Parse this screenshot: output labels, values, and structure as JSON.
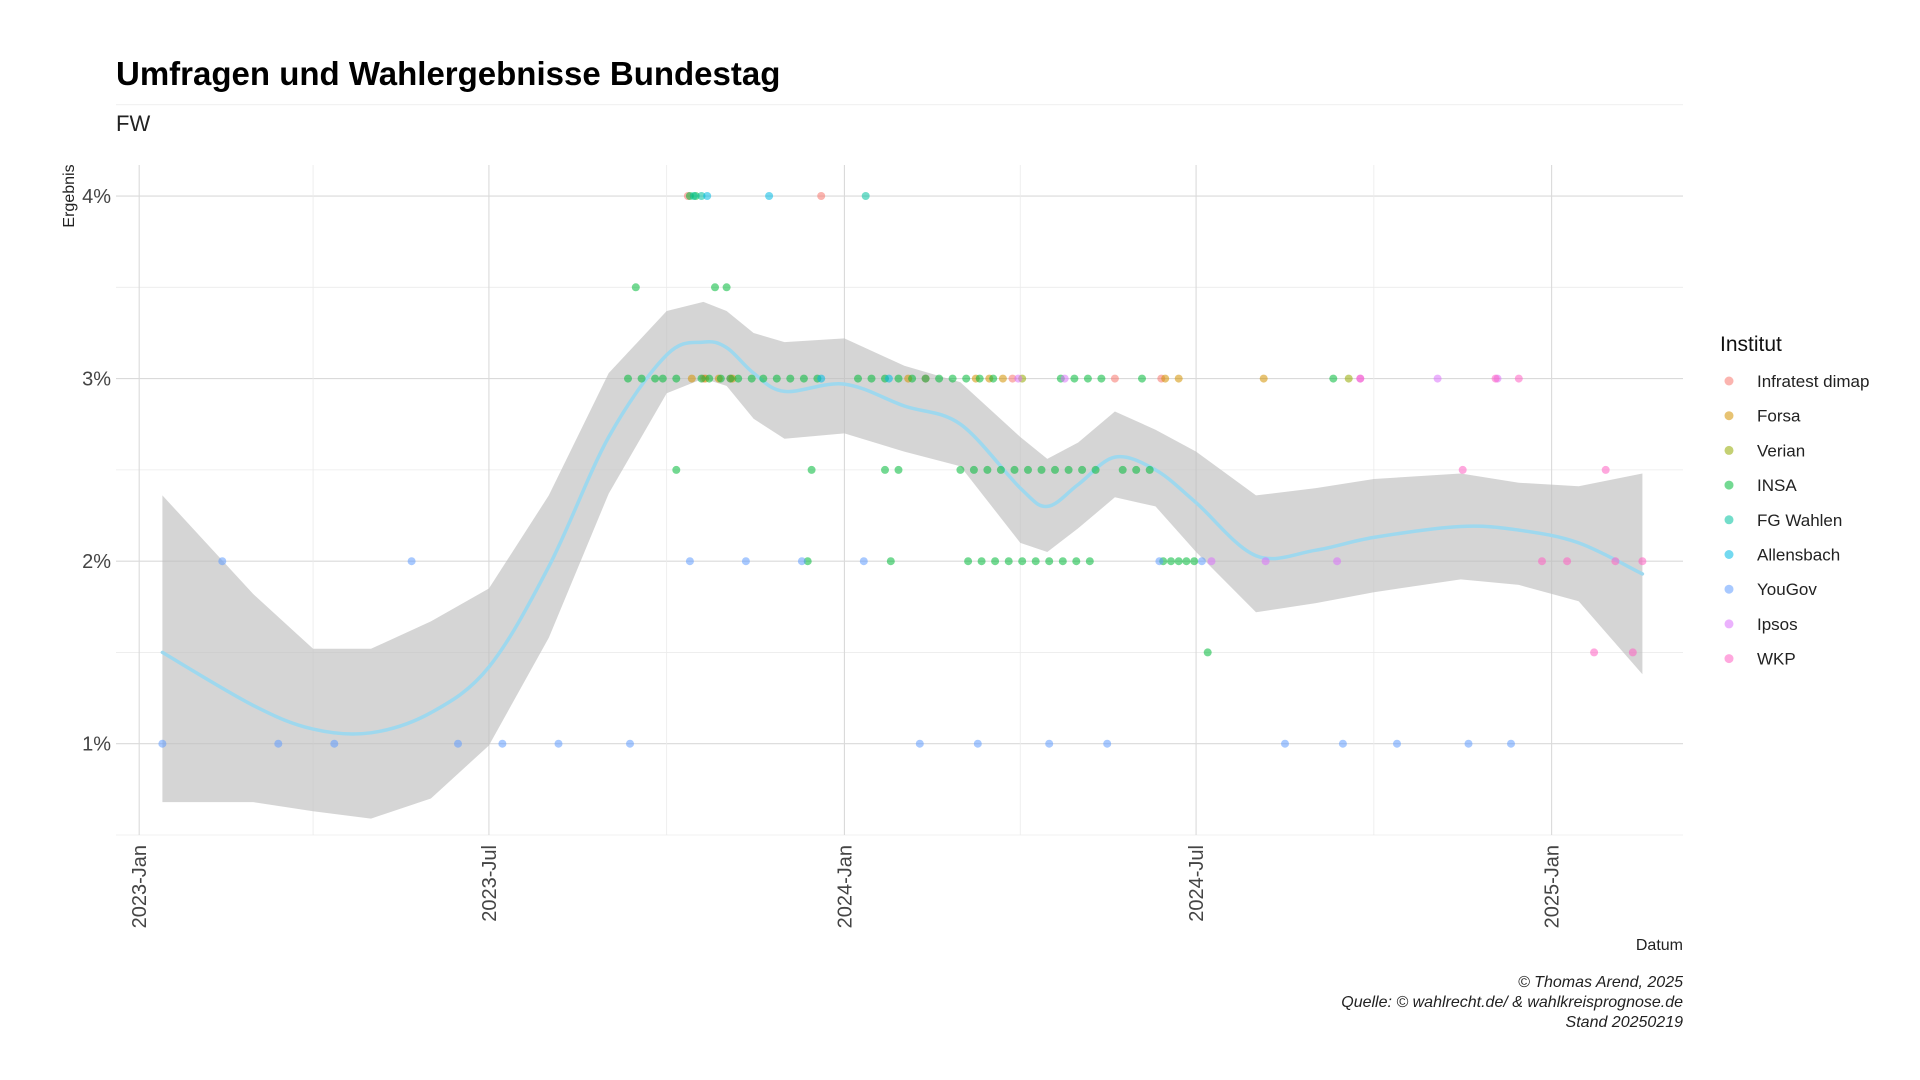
{
  "chart_data": {
    "type": "scatter",
    "title": "Umfragen und Wahlergebnisse Bundestag",
    "subtitle": "FW",
    "xlabel": "Datum",
    "ylabel": "Ergebnis",
    "x_range": [
      "2022-12-20",
      "2025-03-10"
    ],
    "y_range": [
      0.5,
      4.17
    ],
    "x_ticks": [
      {
        "date": "2023-01-01",
        "label": "2023-Jan"
      },
      {
        "date": "2023-07-01",
        "label": "2023-Jul"
      },
      {
        "date": "2024-01-01",
        "label": "2024-Jan"
      },
      {
        "date": "2024-07-01",
        "label": "2024-Jul"
      },
      {
        "date": "2025-01-01",
        "label": "2025-Jan"
      }
    ],
    "y_ticks": [
      {
        "value": 1,
        "label": "1%"
      },
      {
        "value": 2,
        "label": "2%"
      },
      {
        "value": 3,
        "label": "3%"
      },
      {
        "value": 4,
        "label": "4%"
      }
    ],
    "grid": true,
    "legend_title": "Institut",
    "legend_position": "right",
    "series": [
      {
        "name": "Infratest dimap",
        "color": "#F8766D",
        "points": [
          [
            "2023-10-12",
            4
          ],
          [
            "2023-12-20",
            4
          ],
          [
            "2023-10-20",
            3
          ],
          [
            "2023-11-03",
            3
          ],
          [
            "2024-02-12",
            3
          ],
          [
            "2024-03-28",
            3
          ],
          [
            "2024-05-20",
            3
          ],
          [
            "2024-06-13",
            3
          ]
        ]
      },
      {
        "name": "Forsa",
        "color": "#D39200",
        "points": [
          [
            "2023-10-14",
            3
          ],
          [
            "2023-10-21",
            3
          ],
          [
            "2023-10-28",
            3
          ],
          [
            "2023-11-04",
            3
          ],
          [
            "2024-02-03",
            3
          ],
          [
            "2024-03-09",
            3
          ],
          [
            "2024-03-16",
            3
          ],
          [
            "2024-03-23",
            3
          ],
          [
            "2024-06-15",
            3
          ],
          [
            "2024-06-22",
            3
          ],
          [
            "2024-08-05",
            3
          ]
        ]
      },
      {
        "name": "Verian",
        "color": "#93AA00",
        "points": [
          [
            "2024-04-02",
            3
          ],
          [
            "2024-09-18",
            3
          ]
        ]
      },
      {
        "name": "INSA",
        "color": "#00BA38",
        "points": [
          [
            "2023-09-11",
            3
          ],
          [
            "2023-09-18",
            3
          ],
          [
            "2023-09-25",
            3
          ],
          [
            "2023-09-29",
            3
          ],
          [
            "2023-10-06",
            3
          ],
          [
            "2023-10-13",
            4
          ],
          [
            "2023-10-16",
            4
          ],
          [
            "2023-10-19",
            3
          ],
          [
            "2023-10-23",
            3
          ],
          [
            "2023-10-29",
            3
          ],
          [
            "2023-11-03",
            3
          ],
          [
            "2023-11-07",
            3
          ],
          [
            "2023-11-14",
            3
          ],
          [
            "2023-11-20",
            3
          ],
          [
            "2023-11-27",
            3
          ],
          [
            "2023-12-04",
            3
          ],
          [
            "2023-12-11",
            3
          ],
          [
            "2023-12-18",
            3
          ],
          [
            "2024-01-08",
            3
          ],
          [
            "2024-01-15",
            3
          ],
          [
            "2024-01-22",
            3
          ],
          [
            "2024-01-29",
            3
          ],
          [
            "2024-02-05",
            3
          ],
          [
            "2024-02-12",
            3
          ],
          [
            "2024-02-19",
            3
          ],
          [
            "2024-02-26",
            3
          ],
          [
            "2024-03-04",
            3
          ],
          [
            "2024-03-11",
            3
          ],
          [
            "2024-03-18",
            3
          ],
          [
            "2024-04-22",
            3
          ],
          [
            "2024-04-29",
            3
          ],
          [
            "2024-05-06",
            3
          ],
          [
            "2024-05-13",
            3
          ],
          [
            "2024-06-03",
            3
          ],
          [
            "2024-09-10",
            3
          ],
          [
            "2023-09-15",
            3.5
          ],
          [
            "2023-10-26",
            3.5
          ],
          [
            "2023-11-01",
            3.5
          ],
          [
            "2023-10-06",
            2.5
          ],
          [
            "2023-12-15",
            2.5
          ],
          [
            "2024-01-22",
            2.5
          ],
          [
            "2024-01-29",
            2.5
          ],
          [
            "2024-03-01",
            2.5
          ],
          [
            "2024-03-08",
            2.5
          ],
          [
            "2024-03-15",
            2.5
          ],
          [
            "2024-03-22",
            2.5
          ],
          [
            "2024-03-29",
            2.5
          ],
          [
            "2024-04-05",
            2.5
          ],
          [
            "2024-04-12",
            2.5
          ],
          [
            "2024-04-19",
            2.5
          ],
          [
            "2024-04-26",
            2.5
          ],
          [
            "2024-05-03",
            2.5
          ],
          [
            "2024-05-10",
            2.5
          ],
          [
            "2024-05-24",
            2.5
          ],
          [
            "2024-05-31",
            2.5
          ],
          [
            "2024-06-07",
            2.5
          ],
          [
            "2023-12-13",
            2
          ],
          [
            "2024-01-25",
            2
          ],
          [
            "2024-03-05",
            2
          ],
          [
            "2024-03-12",
            2
          ],
          [
            "2024-03-19",
            2
          ],
          [
            "2024-03-26",
            2
          ],
          [
            "2024-04-02",
            2
          ],
          [
            "2024-04-09",
            2
          ],
          [
            "2024-04-16",
            2
          ],
          [
            "2024-04-23",
            2
          ],
          [
            "2024-04-30",
            2
          ],
          [
            "2024-05-07",
            2
          ],
          [
            "2024-06-14",
            2
          ],
          [
            "2024-06-18",
            2
          ],
          [
            "2024-06-22",
            2
          ],
          [
            "2024-06-26",
            2
          ],
          [
            "2024-06-30",
            2
          ],
          [
            "2024-07-07",
            1.5
          ]
        ]
      },
      {
        "name": "FG Wahlen",
        "color": "#00C19F",
        "points": [
          [
            "2023-10-15",
            4
          ],
          [
            "2023-10-19",
            4
          ],
          [
            "2024-01-12",
            4
          ]
        ]
      },
      {
        "name": "Allensbach",
        "color": "#00B9E3",
        "points": [
          [
            "2023-10-22",
            4
          ],
          [
            "2023-11-23",
            4
          ],
          [
            "2023-12-20",
            3
          ],
          [
            "2024-01-24",
            3
          ]
        ]
      },
      {
        "name": "YouGov",
        "color": "#619CFF",
        "points": [
          [
            "2023-01-13",
            1
          ],
          [
            "2023-02-13",
            2
          ],
          [
            "2023-03-14",
            1
          ],
          [
            "2023-04-12",
            1
          ],
          [
            "2023-05-22",
            2
          ],
          [
            "2023-06-15",
            1
          ],
          [
            "2023-07-08",
            1
          ],
          [
            "2023-08-06",
            1
          ],
          [
            "2023-09-12",
            1
          ],
          [
            "2023-10-13",
            2
          ],
          [
            "2023-11-11",
            2
          ],
          [
            "2023-12-10",
            2
          ],
          [
            "2024-01-11",
            2
          ],
          [
            "2024-02-09",
            1
          ],
          [
            "2024-03-10",
            1
          ],
          [
            "2024-04-16",
            1
          ],
          [
            "2024-05-16",
            1
          ],
          [
            "2024-06-12",
            2
          ],
          [
            "2024-07-04",
            2
          ],
          [
            "2024-08-16",
            1
          ],
          [
            "2024-09-15",
            1
          ],
          [
            "2024-10-13",
            1
          ],
          [
            "2024-11-19",
            1
          ],
          [
            "2024-12-11",
            1
          ]
        ]
      },
      {
        "name": "Ipsos",
        "color": "#DB72FB",
        "points": [
          [
            "2024-03-31",
            3
          ],
          [
            "2024-04-24",
            3
          ],
          [
            "2024-07-09",
            2
          ],
          [
            "2024-08-06",
            2
          ],
          [
            "2024-09-12",
            2
          ],
          [
            "2024-09-24",
            3
          ],
          [
            "2024-11-03",
            3
          ],
          [
            "2024-12-04",
            3
          ]
        ]
      },
      {
        "name": "WKP",
        "color": "#FF61C3",
        "points": [
          [
            "2024-09-24",
            3
          ],
          [
            "2024-11-16",
            2.5
          ],
          [
            "2024-12-03",
            3
          ],
          [
            "2024-12-15",
            3
          ],
          [
            "2024-12-27",
            2
          ],
          [
            "2025-01-09",
            2
          ],
          [
            "2025-01-23",
            1.5
          ],
          [
            "2025-01-29",
            2.5
          ],
          [
            "2025-02-03",
            2
          ],
          [
            "2025-02-12",
            1.5
          ],
          [
            "2025-02-17",
            2
          ]
        ]
      }
    ],
    "smooth": {
      "color": "#9ED8EE",
      "band_color": "#BEBEBE",
      "points": [
        [
          "2023-01-13",
          1.5,
          0.68,
          2.36
        ],
        [
          "2023-03-01",
          1.21,
          0.68,
          1.82
        ],
        [
          "2023-04-01",
          1.08,
          0.63,
          1.52
        ],
        [
          "2023-05-01",
          1.06,
          0.59,
          1.52
        ],
        [
          "2023-06-01",
          1.17,
          0.7,
          1.67
        ],
        [
          "2023-07-01",
          1.42,
          0.99,
          1.85
        ],
        [
          "2023-08-01",
          1.97,
          1.58,
          2.36
        ],
        [
          "2023-09-01",
          2.68,
          2.37,
          3.03
        ],
        [
          "2023-10-01",
          3.13,
          2.92,
          3.37
        ],
        [
          "2023-10-20",
          3.2,
          3.0,
          3.42
        ],
        [
          "2023-11-01",
          3.17,
          2.96,
          3.37
        ],
        [
          "2023-11-15",
          3.03,
          2.78,
          3.25
        ],
        [
          "2023-12-01",
          2.93,
          2.67,
          3.2
        ],
        [
          "2024-01-01",
          2.97,
          2.7,
          3.22
        ],
        [
          "2024-02-01",
          2.85,
          2.6,
          3.07
        ],
        [
          "2024-03-01",
          2.75,
          2.52,
          2.98
        ],
        [
          "2024-04-01",
          2.4,
          2.1,
          2.68
        ],
        [
          "2024-04-15",
          2.3,
          2.05,
          2.56
        ],
        [
          "2024-05-01",
          2.42,
          2.18,
          2.65
        ],
        [
          "2024-05-20",
          2.57,
          2.35,
          2.82
        ],
        [
          "2024-06-10",
          2.5,
          2.3,
          2.72
        ],
        [
          "2024-07-01",
          2.32,
          2.05,
          2.6
        ],
        [
          "2024-08-01",
          2.03,
          1.72,
          2.36
        ],
        [
          "2024-09-01",
          2.06,
          1.77,
          2.4
        ],
        [
          "2024-10-01",
          2.13,
          1.83,
          2.45
        ],
        [
          "2024-11-15",
          2.19,
          1.9,
          2.48
        ],
        [
          "2024-12-15",
          2.17,
          1.87,
          2.43
        ],
        [
          "2025-01-15",
          2.1,
          1.78,
          2.41
        ],
        [
          "2025-02-17",
          1.93,
          1.38,
          2.48
        ]
      ]
    },
    "caption": [
      "© Thomas Arend, 2025",
      "Quelle: © wahlrecht.de/ & wahlkreisprognose.de",
      "Stand 20250219"
    ]
  }
}
